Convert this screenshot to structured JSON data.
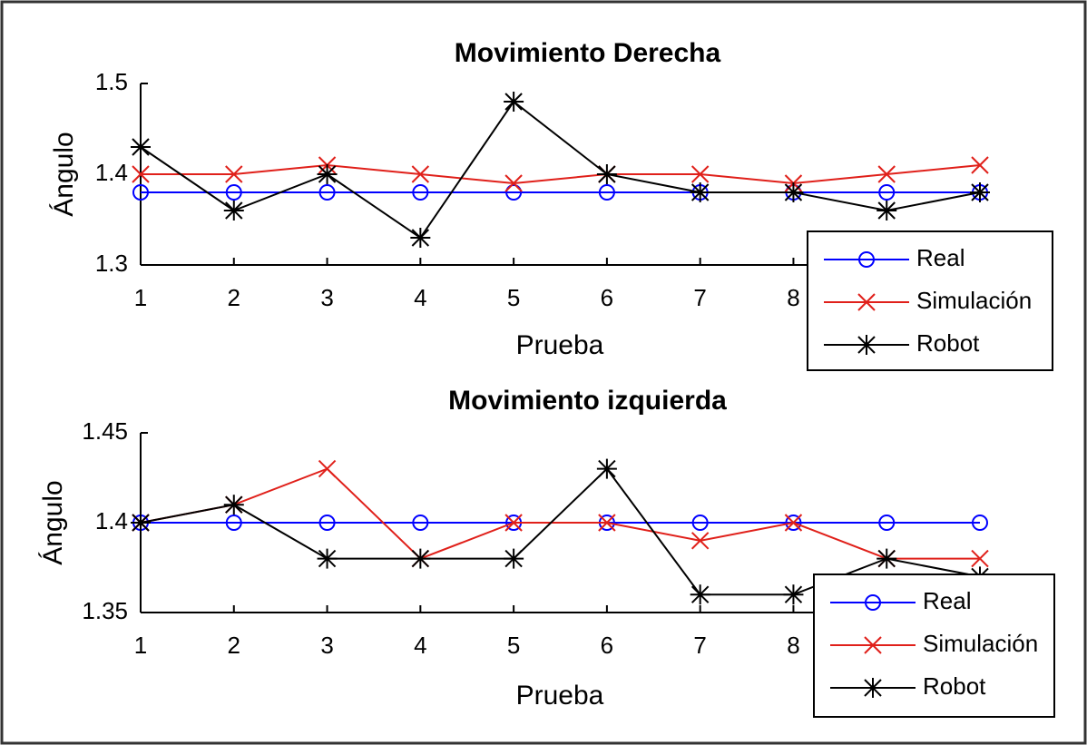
{
  "chart_data": [
    {
      "type": "line",
      "title": "Movimiento Derecha",
      "x_label": "Prueba",
      "y_label": "Ángulo",
      "x": [
        1,
        2,
        3,
        4,
        5,
        6,
        7,
        8,
        9,
        10
      ],
      "xlim": [
        1,
        10
      ],
      "xticks": [
        1,
        2,
        3,
        4,
        5,
        6,
        7,
        8
      ],
      "ylim": [
        1.3,
        1.5
      ],
      "yticks": [
        1.3,
        1.4,
        1.5
      ],
      "legend": "lower right",
      "series": [
        {
          "name": "Real",
          "color": "#0000ff",
          "marker": "o",
          "values": [
            1.38,
            1.38,
            1.38,
            1.38,
            1.38,
            1.38,
            1.38,
            1.38,
            1.38,
            1.38
          ]
        },
        {
          "name": "Simulación",
          "color": "#e0201a",
          "marker": "x",
          "values": [
            1.4,
            1.4,
            1.41,
            1.4,
            1.39,
            1.4,
            1.4,
            1.39,
            1.4,
            1.41
          ]
        },
        {
          "name": "Robot",
          "color": "#000000",
          "marker": "*",
          "values": [
            1.43,
            1.36,
            1.4,
            1.33,
            1.48,
            1.4,
            1.38,
            1.38,
            1.36,
            1.38
          ]
        }
      ]
    },
    {
      "type": "line",
      "title": "Movimiento izquierda",
      "x_label": "Prueba",
      "y_label": "Ángulo",
      "x": [
        1,
        2,
        3,
        4,
        5,
        6,
        7,
        8,
        9,
        10
      ],
      "xlim": [
        1,
        10
      ],
      "xticks": [
        1,
        2,
        3,
        4,
        5,
        6,
        7,
        8
      ],
      "ylim": [
        1.35,
        1.45
      ],
      "yticks": [
        1.35,
        1.4,
        1.45
      ],
      "legend": "lower right",
      "series": [
        {
          "name": "Real",
          "color": "#0000ff",
          "marker": "o",
          "values": [
            1.4,
            1.4,
            1.4,
            1.4,
            1.4,
            1.4,
            1.4,
            1.4,
            1.4,
            1.4
          ]
        },
        {
          "name": "Simulación",
          "color": "#e0201a",
          "marker": "x",
          "values": [
            1.4,
            1.41,
            1.43,
            1.38,
            1.4,
            1.4,
            1.39,
            1.4,
            1.38,
            1.38
          ]
        },
        {
          "name": "Robot",
          "color": "#000000",
          "marker": "*",
          "values": [
            1.4,
            1.41,
            1.38,
            1.38,
            1.38,
            1.43,
            1.36,
            1.36,
            1.38,
            1.37
          ]
        }
      ]
    }
  ]
}
